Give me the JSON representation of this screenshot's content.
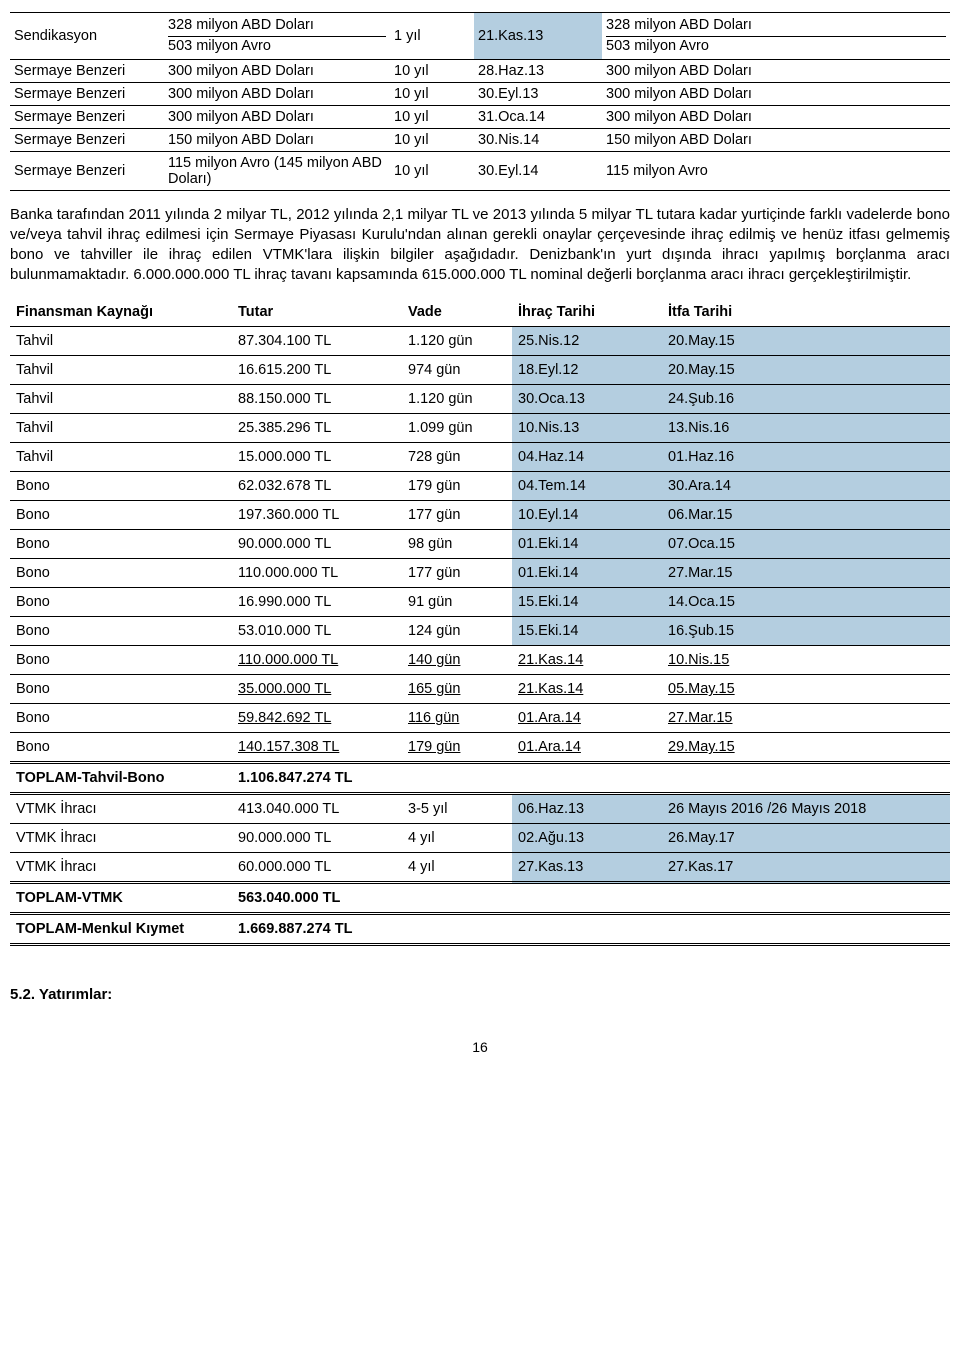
{
  "colors": {
    "highlight": "#b4cee0",
    "text": "#000000",
    "background": "#ffffff"
  },
  "table1": {
    "rows": [
      {
        "c0": "Sendikasyon",
        "c1a": "328 milyon ABD Doları",
        "c1b": "503 milyon Avro",
        "c2": "1 yıl",
        "c3": "21.Kas.13",
        "c4a": "328 milyon ABD Doları",
        "c4b": "503 milyon Avro",
        "stacked": true,
        "hl3": true
      },
      {
        "c0": "Sermaye Benzeri",
        "c1": "300 milyon ABD Doları",
        "c2": "10 yıl",
        "c3": "28.Haz.13",
        "c4": "300 milyon ABD Doları"
      },
      {
        "c0": "Sermaye Benzeri",
        "c1": "300 milyon ABD Doları",
        "c2": "10 yıl",
        "c3": "30.Eyl.13",
        "c4": "300 milyon ABD Doları"
      },
      {
        "c0": "Sermaye Benzeri",
        "c1": "300 milyon ABD Doları",
        "c2": "10 yıl",
        "c3": "31.Oca.14",
        "c4": "300 milyon ABD Doları"
      },
      {
        "c0": "Sermaye Benzeri",
        "c1": "150 milyon ABD Doları",
        "c2": "10 yıl",
        "c3": "30.Nis.14",
        "c4": "150 milyon ABD Doları"
      },
      {
        "c0": "Sermaye Benzeri",
        "c1": "115 milyon Avro (145 milyon ABD Doları)",
        "c2": "10 yıl",
        "c3": "30.Eyl.14",
        "c4": "115 milyon Avro"
      }
    ]
  },
  "paragraph": "Banka tarafından 2011 yılında 2 milyar TL,  2012 yılında 2,1 milyar TL ve 2013 yılında 5 milyar TL tutara kadar yurtiçinde farklı vadelerde bono ve/veya tahvil ihraç edilmesi için Sermaye Piyasası Kurulu'ndan alınan gerekli onaylar çerçevesinde ihraç edilmiş ve henüz itfası gelmemiş bono ve tahviller ile ihraç edilen VTMK'lara ilişkin bilgiler aşağıdadır. Denizbank'ın yurt dışında ihracı yapılmış borçlanma aracı bulunmamaktadır. 6.000.000.000 TL ihraç tavanı kapsamında 615.000.000 TL nominal değerli borçlanma aracı ihracı gerçekleştirilmiştir.",
  "table2": {
    "header": {
      "c0": "Finansman Kaynağı",
      "c1": "Tutar",
      "c2": "Vade",
      "c3": "İhraç Tarihi",
      "c4": "İtfa Tarihi"
    },
    "rows": [
      {
        "c0": "Tahvil",
        "c1": "87.304.100 TL",
        "c2": "1.120 gün",
        "c3": "25.Nis.12",
        "c4": "20.May.15",
        "hl": true
      },
      {
        "c0": "Tahvil",
        "c1": "16.615.200 TL",
        "c2": "974 gün",
        "c3": "18.Eyl.12",
        "c4": "20.May.15",
        "hl": true
      },
      {
        "c0": "Tahvil",
        "c1": "88.150.000 TL",
        "c2": "1.120 gün",
        "c3": "30.Oca.13",
        "c4": "24.Şub.16",
        "hl": true
      },
      {
        "c0": "Tahvil",
        "c1": "25.385.296 TL",
        "c2": "1.099 gün",
        "c3": "10.Nis.13",
        "c4": "13.Nis.16",
        "hl": true
      },
      {
        "c0": "Tahvil",
        "c1": "15.000.000 TL",
        "c2": "728 gün",
        "c3": "04.Haz.14",
        "c4": "01.Haz.16",
        "hl": true
      },
      {
        "c0": "Bono",
        "c1": "62.032.678 TL",
        "c2": "179 gün",
        "c3": "04.Tem.14",
        "c4": "30.Ara.14",
        "hl": true
      },
      {
        "c0": "Bono",
        "c1": "197.360.000 TL",
        "c2": "177 gün",
        "c3": "10.Eyl.14",
        "c4": "06.Mar.15",
        "hl": true
      },
      {
        "c0": "Bono",
        "c1": "90.000.000 TL",
        "c2": "98 gün",
        "c3": "01.Eki.14",
        "c4": "07.Oca.15",
        "hl": true
      },
      {
        "c0": "Bono",
        "c1": "110.000.000 TL",
        "c2": "177 gün",
        "c3": "01.Eki.14",
        "c4": "27.Mar.15",
        "hl": true
      },
      {
        "c0": "Bono",
        "c1": "16.990.000 TL",
        "c2": "91 gün",
        "c3": "15.Eki.14",
        "c4": "14.Oca.15",
        "hl": true
      },
      {
        "c0": "Bono",
        "c1": "53.010.000 TL",
        "c2": "124 gün",
        "c3": "15.Eki.14",
        "c4": "16.Şub.15",
        "hl": true
      },
      {
        "c0": "Bono",
        "c1": "110.000.000 TL",
        "c2": "140 gün",
        "c3": "21.Kas.14",
        "c4": "10.Nis.15",
        "ul": true
      },
      {
        "c0": "Bono",
        "c1": "35.000.000 TL",
        "c2": "165 gün",
        "c3": "21.Kas.14",
        "c4": "05.May.15",
        "ul": true
      },
      {
        "c0": "Bono",
        "c1": "59.842.692 TL",
        "c2": "116 gün",
        "c3": "01.Ara.14",
        "c4": "27.Mar.15",
        "ul": true
      },
      {
        "c0": "Bono",
        "c1": "140.157.308 TL",
        "c2": "179 gün",
        "c3": "01.Ara.14",
        "c4": "29.May.15",
        "ul": true
      }
    ],
    "total1": {
      "c0": "TOPLAM-Tahvil-Bono",
      "c1": "1.106.847.274 TL"
    },
    "vtmk": [
      {
        "c0": "VTMK İhracı",
        "c1": "413.040.000 TL",
        "c2": "3-5 yıl",
        "c3": "06.Haz.13",
        "c4": "26 Mayıs 2016 /26 Mayıs 2018",
        "hl": true
      },
      {
        "c0": "VTMK İhracı",
        "c1": "90.000.000 TL",
        "c2": "4 yıl",
        "c3": "02.Ağu.13",
        "c4": "26.May.17",
        "hl": true
      },
      {
        "c0": "VTMK İhracı",
        "c1": "60.000.000 TL",
        "c2": "4 yıl",
        "c3": "27.Kas.13",
        "c4": "27.Kas.17",
        "hl": true
      }
    ],
    "total2": {
      "c0": "TOPLAM-VTMK",
      "c1": "563.040.000 TL"
    },
    "total3": {
      "c0": "TOPLAM-Menkul Kıymet",
      "c1": "1.669.887.274 TL"
    }
  },
  "sectionTitle": "5.2. Yatırımlar:",
  "pageNumber": "16"
}
